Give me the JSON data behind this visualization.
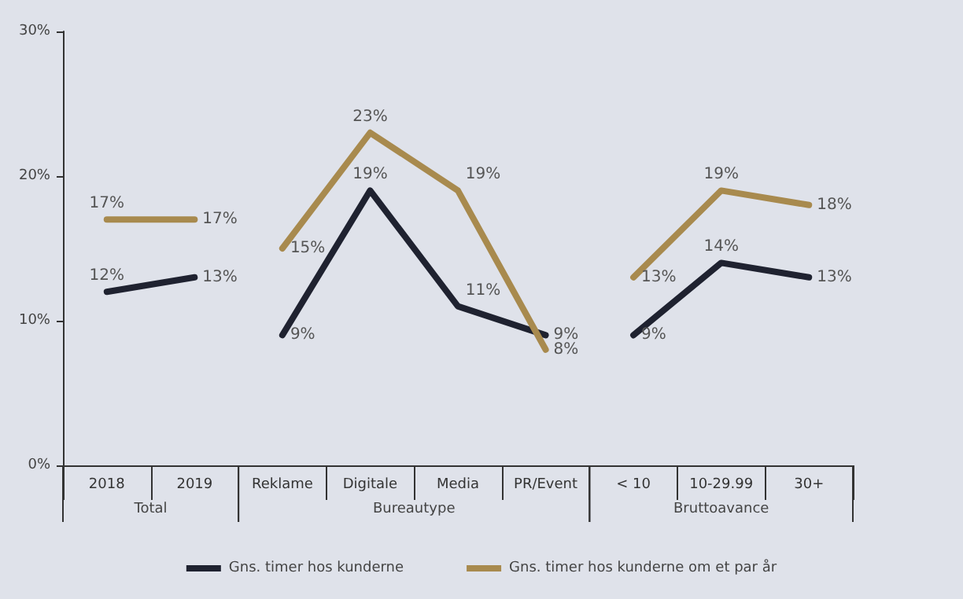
{
  "chart_data": {
    "type": "line",
    "categories": [
      "2018",
      "2019",
      "Reklame",
      "Digitale",
      "Media",
      "PR/Event",
      "< 10",
      "10-29.99",
      "30+"
    ],
    "ylim": [
      0,
      30
    ],
    "yticks": [
      {
        "value": 0,
        "label": "0%"
      },
      {
        "value": 10,
        "label": "10%"
      },
      {
        "value": 20,
        "label": "20%"
      },
      {
        "value": 30,
        "label": "30%"
      }
    ],
    "series": [
      {
        "name": "Gns. timer hos kunderne",
        "color": "#1f2230",
        "values": [
          12,
          13,
          null,
          null,
          null,
          null,
          null,
          null,
          null
        ],
        "value_labels": [
          "12%",
          "13%",
          null,
          null,
          null,
          null,
          null,
          null,
          null
        ]
      },
      {
        "color": "#1f2230",
        "values": [
          null,
          null,
          9,
          19,
          11,
          9,
          null,
          null,
          null
        ],
        "value_labels": [
          null,
          null,
          "9%",
          "19%",
          "11%",
          "9%",
          null,
          null,
          null
        ]
      },
      {
        "color": "#1f2230",
        "values": [
          null,
          null,
          null,
          null,
          null,
          null,
          9,
          14,
          13
        ],
        "value_labels": [
          null,
          null,
          null,
          null,
          null,
          null,
          "9%",
          "14%",
          "13%"
        ]
      },
      {
        "name": "Gns. timer hos kunderne om et par år",
        "color": "#a88a4e",
        "values": [
          17,
          17,
          null,
          null,
          null,
          null,
          null,
          null,
          null
        ],
        "value_labels": [
          "17%",
          "17%",
          null,
          null,
          null,
          null,
          null,
          null,
          null
        ]
      },
      {
        "color": "#a88a4e",
        "values": [
          null,
          null,
          15,
          23,
          19,
          8,
          null,
          null,
          null
        ],
        "value_labels": [
          null,
          null,
          "15%",
          "23%",
          "19%",
          "8%",
          null,
          null,
          null
        ]
      },
      {
        "color": "#a88a4e",
        "values": [
          null,
          null,
          null,
          null,
          null,
          null,
          13,
          19,
          18
        ],
        "value_labels": [
          null,
          null,
          null,
          null,
          null,
          null,
          "13%",
          "19%",
          "18%"
        ]
      }
    ],
    "annotations": [
      "Total",
      "Bureautype",
      "Bruttoavance"
    ],
    "legend": "bottom",
    "grid": false,
    "marker": "none",
    "line_style": "solid"
  }
}
